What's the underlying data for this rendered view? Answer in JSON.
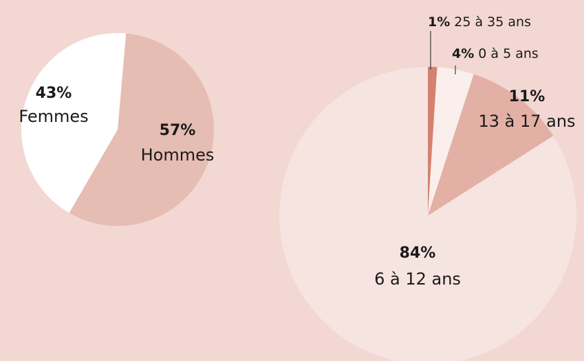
{
  "chart_data": [
    {
      "type": "pie",
      "categories": [
        "Hommes",
        "Femmes"
      ],
      "values": [
        57,
        43
      ],
      "value_labels": [
        "57%",
        "43%"
      ],
      "colors": [
        "#e6bdb3",
        "#ffffff"
      ]
    },
    {
      "type": "pie",
      "categories": [
        "25 à 35 ans",
        "0 à 5 ans",
        "13 à 17 ans",
        "6 à 12 ans"
      ],
      "values": [
        1,
        4,
        11,
        84
      ],
      "value_labels": [
        "1%",
        "4%",
        "11%",
        "84%"
      ],
      "colors": [
        "#d4826f",
        "#fbefed",
        "#e3b0a5",
        "#f6e4e1"
      ]
    }
  ]
}
